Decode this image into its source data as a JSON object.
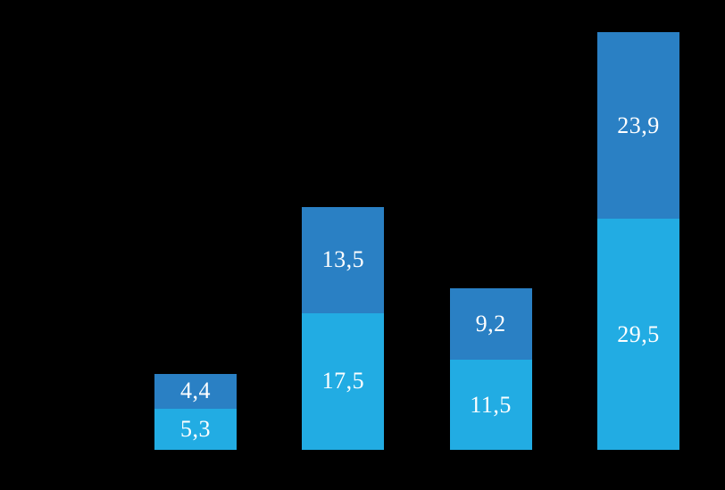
{
  "window": {
    "background": "#000000"
  },
  "chart_data": {
    "type": "bar",
    "stacked": true,
    "orientation": "vertical",
    "title": "",
    "xlabel": "",
    "ylabel": "",
    "categories": [
      "",
      "",
      "",
      ""
    ],
    "series": [
      {
        "name": "bottom",
        "color": "#22ACE3",
        "values": [
          5.3,
          17.5,
          11.5,
          29.5
        ],
        "labels": [
          "5,3",
          "17,5",
          "11,5",
          "29,5"
        ]
      },
      {
        "name": "top",
        "color": "#2A80C4",
        "values": [
          4.4,
          13.5,
          9.2,
          23.9
        ],
        "labels": [
          "4,4",
          "13,5",
          "9,2",
          "23,9"
        ]
      }
    ],
    "ylim": [
      0,
      57.5
    ],
    "grid": false,
    "legend_position": "none",
    "axes_visible": false,
    "value_label_color": "#FFFFFF",
    "decimal_separator": ","
  }
}
